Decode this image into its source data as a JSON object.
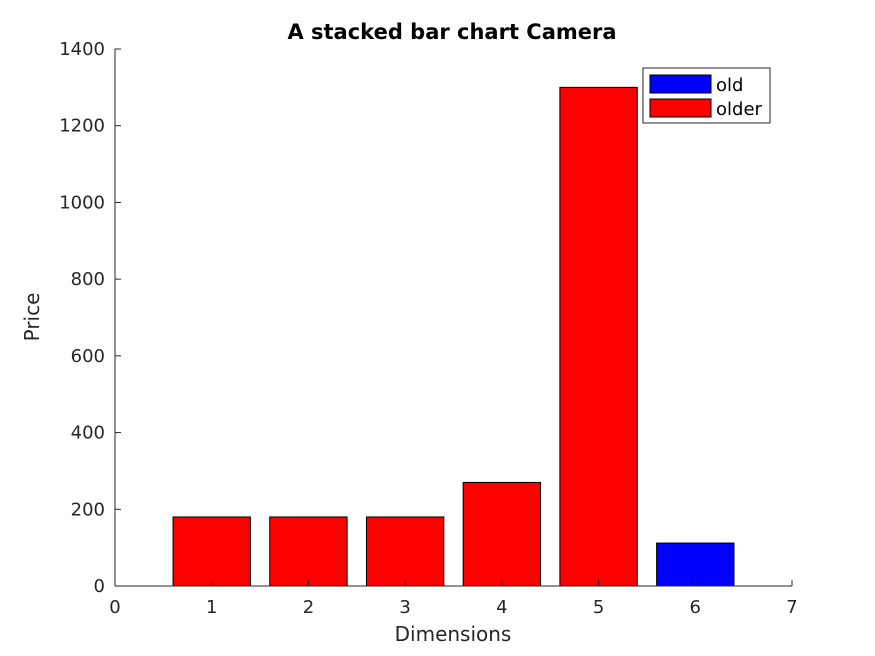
{
  "chart_data": {
    "type": "bar",
    "title": "A stacked bar chart Camera",
    "xlabel": "Dimensions",
    "ylabel": "Price",
    "xlim": [
      0,
      7
    ],
    "ylim": [
      0,
      1400
    ],
    "xticks": [
      "0",
      "1",
      "2",
      "3",
      "4",
      "5",
      "6",
      "7"
    ],
    "yticks": [
      "0",
      "200",
      "400",
      "600",
      "800",
      "1000",
      "1200",
      "1400"
    ],
    "grid": false,
    "legend_position": "top-right",
    "series": [
      {
        "name": "old",
        "color": "#0000ff",
        "points": [
          {
            "x": 6,
            "y": 112
          }
        ]
      },
      {
        "name": "older",
        "color": "#ff0000",
        "points": [
          {
            "x": 1,
            "y": 180
          },
          {
            "x": 2,
            "y": 180
          },
          {
            "x": 3,
            "y": 180
          },
          {
            "x": 4,
            "y": 270
          },
          {
            "x": 5,
            "y": 1300
          }
        ]
      }
    ]
  }
}
